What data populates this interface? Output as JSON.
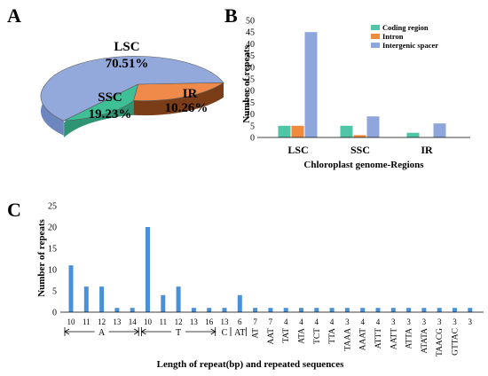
{
  "panels": {
    "a": "A",
    "b": "B",
    "c": "C"
  },
  "chart_data": [
    {
      "type": "pie",
      "labels": [
        "LSC",
        "SSC",
        "IR"
      ],
      "values": [
        70.51,
        19.23,
        10.26
      ],
      "value_labels": [
        "70.51%",
        "19.23%",
        "10.26%"
      ],
      "colors": [
        "#93a9dc",
        "#3fbf96",
        "#f08a4b"
      ]
    },
    {
      "type": "bar",
      "categories": [
        "LSC",
        "SSC",
        "IR"
      ],
      "series": [
        {
          "name": "Coding region",
          "values": [
            5,
            5,
            2
          ],
          "color": "#4fc7a7"
        },
        {
          "name": "Intron",
          "values": [
            5,
            1,
            0
          ],
          "color": "#f08a3c"
        },
        {
          "name": "Intergenic spacer",
          "values": [
            45,
            9,
            6
          ],
          "color": "#8fa6dc"
        }
      ],
      "xlabel": "Chloroplast genome-Regions",
      "ylabel": "Number of repeats",
      "ylim": [
        0,
        50
      ],
      "yticks": [
        "0",
        "5",
        "10",
        "15",
        "20",
        "25",
        "30",
        "35",
        "40",
        "45",
        "50"
      ],
      "legend_position": "top-right"
    },
    {
      "type": "bar",
      "categories": [
        "10",
        "11",
        "12",
        "13",
        "14",
        "10",
        "11",
        "12",
        "13",
        "16",
        "13",
        "6",
        "7",
        "7",
        "4",
        "4",
        "4",
        "4",
        "3",
        "4",
        "4",
        "3",
        "3",
        "3",
        "3",
        "3",
        "3"
      ],
      "values": [
        11,
        6,
        6,
        1,
        1,
        20,
        4,
        6,
        1,
        1,
        1,
        4,
        1,
        1,
        1,
        1,
        1,
        1,
        1,
        1,
        1,
        1,
        1,
        1,
        1,
        1,
        1
      ],
      "groups": [
        {
          "label": "A",
          "start": 0,
          "end": 4
        },
        {
          "label": "T",
          "start": 5,
          "end": 9
        },
        {
          "label": "C",
          "start": 10,
          "end": 10
        },
        {
          "label": "AT",
          "start": 11,
          "end": 11
        }
      ],
      "sequences": [
        "AT",
        "AAT",
        "TAT",
        "ATA",
        "TCT",
        "TTA",
        "TAAA",
        "AAAT",
        "ATTT",
        "AATT",
        "ATTA",
        "ATATA",
        "TAACG",
        "GTTAC"
      ],
      "sequence_start_index": 12,
      "color": "#4a90d9",
      "xlabel": "Length  of repeat(bp) and repeated sequences",
      "ylabel": "Number of repeats",
      "ylim": [
        0,
        25
      ],
      "yticks": [
        "0",
        "5",
        "10",
        "15",
        "20",
        "25"
      ]
    }
  ]
}
